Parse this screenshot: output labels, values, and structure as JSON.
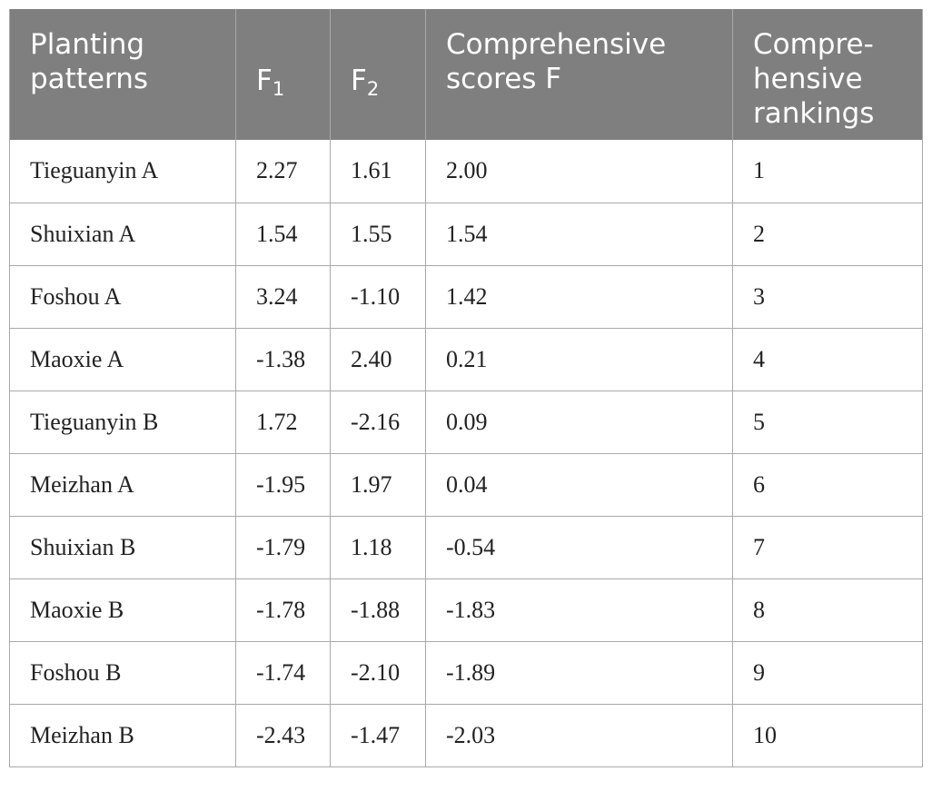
{
  "table": {
    "headers": {
      "pattern": "Planting\npatterns",
      "f1": {
        "base": "F",
        "sub": "1"
      },
      "f2": {
        "base": "F",
        "sub": "2"
      },
      "score": "Comprehensive\nscores F",
      "rank": "Compre-\nhensive\nrankings"
    },
    "rows": [
      {
        "pattern": "Tieguanyin A",
        "f1": "2.27",
        "f2": "1.61",
        "score": "2.00",
        "rank": "1"
      },
      {
        "pattern": "Shuixian A",
        "f1": "1.54",
        "f2": "1.55",
        "score": "1.54",
        "rank": "2"
      },
      {
        "pattern": "Foshou A",
        "f1": "3.24",
        "f2": "-1.10",
        "score": "1.42",
        "rank": "3"
      },
      {
        "pattern": "Maoxie A",
        "f1": "-1.38",
        "f2": "2.40",
        "score": "0.21",
        "rank": "4"
      },
      {
        "pattern": "Tieguanyin B",
        "f1": "1.72",
        "f2": "-2.16",
        "score": "0.09",
        "rank": "5"
      },
      {
        "pattern": "Meizhan A",
        "f1": "-1.95",
        "f2": "1.97",
        "score": "0.04",
        "rank": "6"
      },
      {
        "pattern": "Shuixian B",
        "f1": "-1.79",
        "f2": "1.18",
        "score": "-0.54",
        "rank": "7"
      },
      {
        "pattern": "Maoxie B",
        "f1": "-1.78",
        "f2": "-1.88",
        "score": "-1.83",
        "rank": "8"
      },
      {
        "pattern": "Foshou B",
        "f1": "-1.74",
        "f2": "-2.10",
        "score": "-1.89",
        "rank": "9"
      },
      {
        "pattern": "Meizhan B",
        "f1": "-2.43",
        "f2": "-1.47",
        "score": "-2.03",
        "rank": "10"
      }
    ]
  }
}
